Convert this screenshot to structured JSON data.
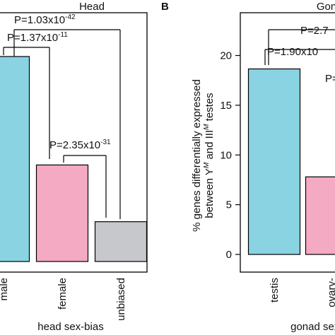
{
  "chart_data": [
    {
      "type": "bar",
      "title": "Head",
      "x_label": "head sex-bias",
      "categories": [
        "male",
        "female",
        "unbiased"
      ],
      "values": [
        20.6,
        9.7,
        4.0
      ],
      "colors": [
        "#89d3e3",
        "#f4aac2",
        "#c7c8cc"
      ],
      "ylim": [
        0,
        25
      ],
      "annotations": [
        {
          "text": "P=1.03x10",
          "exponent": "-42"
        },
        {
          "text": "P=1.37x10",
          "exponent": "-11"
        },
        {
          "text": "P=2.35x10",
          "exponent": "-31"
        }
      ]
    },
    {
      "type": "bar",
      "panel": "B",
      "title": "Gon",
      "y_label": {
        "line1": "% genes differentially expressed",
        "parts": [
          "between Y",
          "M",
          " and III",
          "M",
          " testes"
        ]
      },
      "x_label": "gonad sex-bias",
      "categories": [
        "testis",
        "ovary-"
      ],
      "values": [
        18.65,
        7.8
      ],
      "colors": [
        "#89d3e3",
        "#f4aac2"
      ],
      "ylim": [
        0,
        24.3
      ],
      "yticks": [
        0,
        5,
        10,
        15,
        20
      ],
      "annotations": [
        {
          "text": "P=2.7"
        },
        {
          "text": "P=1.90x10"
        },
        {
          "text": "P="
        }
      ]
    }
  ]
}
